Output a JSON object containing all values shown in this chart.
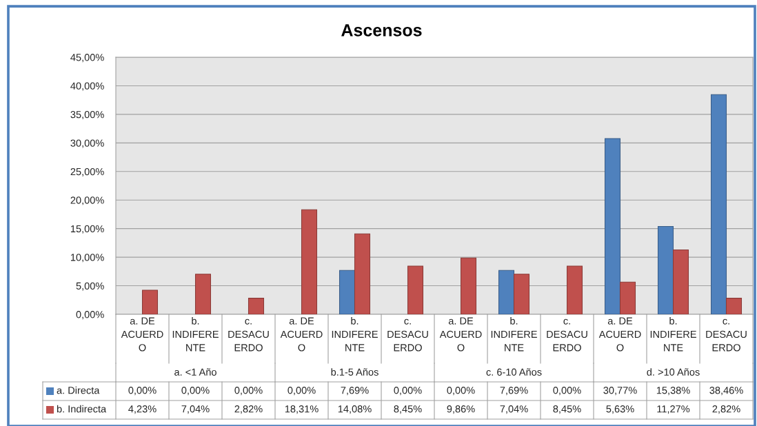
{
  "chart_data": {
    "type": "bar",
    "title": "Ascensos",
    "categories": [
      "a. DE ACUERDO",
      "b. INDIFERENTE",
      "c. DESACUERDO",
      "a. DE ACUERDO",
      "b. INDIFERENTE",
      "c. DESACUERDO",
      "a. DE ACUERDO",
      "b. INDIFERENTE",
      "c. DESACUERDO",
      "a. DE ACUERDO",
      "b. INDIFERENTE",
      "c. DESACUERDO"
    ],
    "series": [
      {
        "name": "a. Directa",
        "color": "#4f81bd",
        "values": [
          0,
          0,
          0,
          0,
          7.69,
          0,
          0,
          7.69,
          0,
          30.77,
          15.38,
          38.46
        ],
        "value_labels": [
          "0,00%",
          "0,00%",
          "0,00%",
          "0,00%",
          "7,69%",
          "0,00%",
          "0,00%",
          "7,69%",
          "0,00%",
          "30,77%",
          "15,38%",
          "38,46%"
        ]
      },
      {
        "name": "b. Indirecta",
        "color": "#c0504d",
        "values": [
          4.23,
          7.04,
          2.82,
          18.31,
          14.08,
          8.45,
          9.86,
          7.04,
          8.45,
          5.63,
          11.27,
          2.82
        ],
        "value_labels": [
          "4,23%",
          "7,04%",
          "2,82%",
          "18,31%",
          "14,08%",
          "8,45%",
          "9,86%",
          "7,04%",
          "8,45%",
          "5,63%",
          "11,27%",
          "2,82%"
        ]
      }
    ],
    "ylim": [
      0,
      45
    ],
    "yticks": [
      {
        "value": 0,
        "label": "0,00%"
      },
      {
        "value": 5,
        "label": "5,00%"
      },
      {
        "value": 10,
        "label": "10,00%"
      },
      {
        "value": 15,
        "label": "15,00%"
      },
      {
        "value": 20,
        "label": "20,00%"
      },
      {
        "value": 25,
        "label": "25,00%"
      },
      {
        "value": 30,
        "label": "30,00%"
      },
      {
        "value": 35,
        "label": "35,00%"
      },
      {
        "value": 40,
        "label": "40,00%"
      },
      {
        "value": 45,
        "label": "45,00%"
      }
    ],
    "grid": "y",
    "legend": "bottom left",
    "annotations": [
      "a. <1 Año",
      "b.1-5 Años",
      "c. 6-10 Años",
      "d. >10 Años"
    ]
  }
}
